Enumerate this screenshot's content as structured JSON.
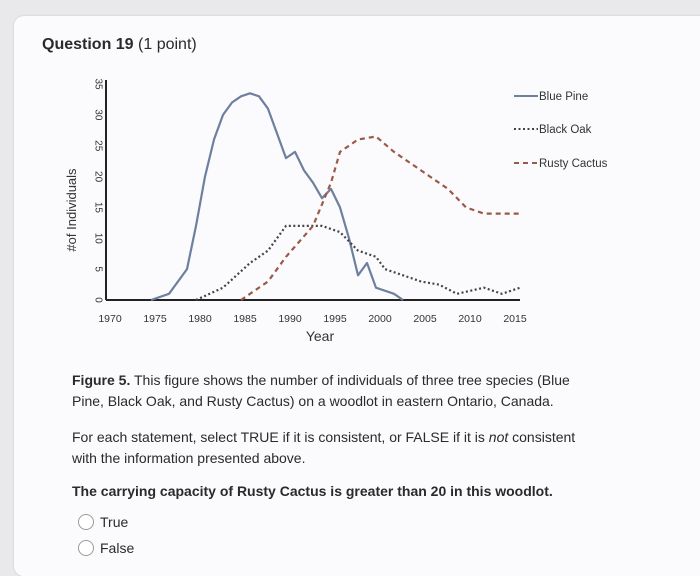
{
  "question": {
    "label": "Question 19",
    "points": "(1 point)"
  },
  "chart_data": {
    "type": "line",
    "xlabel": "Year",
    "ylabel": "#of Individuals",
    "x_ticks": [
      1970,
      1975,
      1980,
      1985,
      1990,
      1995,
      2000,
      2005,
      2010,
      2015
    ],
    "y_ticks": [
      0,
      5,
      10,
      15,
      20,
      25,
      30,
      35
    ],
    "xlim": [
      1970,
      2016
    ],
    "ylim": [
      0,
      35
    ],
    "legend_position": "right",
    "series": [
      {
        "name": "Blue Pine",
        "style": "solid",
        "color": "#6f7f9e",
        "points": [
          [
            1975,
            0
          ],
          [
            1977,
            1
          ],
          [
            1979,
            5
          ],
          [
            1980,
            12
          ],
          [
            1981,
            20
          ],
          [
            1982,
            26
          ],
          [
            1983,
            30
          ],
          [
            1984,
            32
          ],
          [
            1985,
            33
          ],
          [
            1986,
            33.5
          ],
          [
            1987,
            33
          ],
          [
            1988,
            31
          ],
          [
            1989,
            27
          ],
          [
            1990,
            23
          ],
          [
            1991,
            24
          ],
          [
            1992,
            21
          ],
          [
            1993,
            19
          ],
          [
            1994,
            16.5
          ],
          [
            1995,
            18
          ],
          [
            1996,
            15
          ],
          [
            1997,
            10
          ],
          [
            1998,
            4
          ],
          [
            1999,
            6
          ],
          [
            2000,
            2
          ],
          [
            2002,
            1
          ],
          [
            2003,
            0
          ]
        ]
      },
      {
        "name": "Black Oak",
        "style": "dotted",
        "color": "#444444",
        "points": [
          [
            1980,
            0
          ],
          [
            1983,
            2
          ],
          [
            1986,
            6
          ],
          [
            1988,
            8
          ],
          [
            1990,
            12
          ],
          [
            1994,
            12
          ],
          [
            1996,
            11
          ],
          [
            1998,
            8
          ],
          [
            2000,
            7
          ],
          [
            2001,
            5
          ],
          [
            2003,
            4
          ],
          [
            2005,
            3
          ],
          [
            2007,
            2.5
          ],
          [
            2009,
            1
          ],
          [
            2012,
            2
          ],
          [
            2014,
            1
          ],
          [
            2016,
            2
          ]
        ]
      },
      {
        "name": "Rusty Cactus",
        "style": "dashed",
        "color": "#9a5a48",
        "points": [
          [
            1985,
            0
          ],
          [
            1988,
            3
          ],
          [
            1990,
            7
          ],
          [
            1993,
            12
          ],
          [
            1995,
            19
          ],
          [
            1996,
            24
          ],
          [
            1998,
            26
          ],
          [
            2000,
            26.5
          ],
          [
            2002,
            24
          ],
          [
            2004,
            22
          ],
          [
            2006,
            20
          ],
          [
            2008,
            18
          ],
          [
            2010,
            15
          ],
          [
            2012,
            14
          ],
          [
            2016,
            14
          ]
        ]
      }
    ]
  },
  "figure_caption": {
    "label": "Figure 5.",
    "text": " This figure shows the number of individuals of three tree species (Blue Pine, Black Oak, and Rusty Cactus) on a woodlot in eastern Ontario, Canada."
  },
  "instructions": {
    "pre": "For each statement, select TRUE if it is consistent, or FALSE if it is ",
    "emph": "not",
    "post": " consistent with the information presented above."
  },
  "statement": "The carrying capacity of Rusty Cactus is greater than 20 in this woodlot.",
  "options": [
    "True",
    "False"
  ]
}
